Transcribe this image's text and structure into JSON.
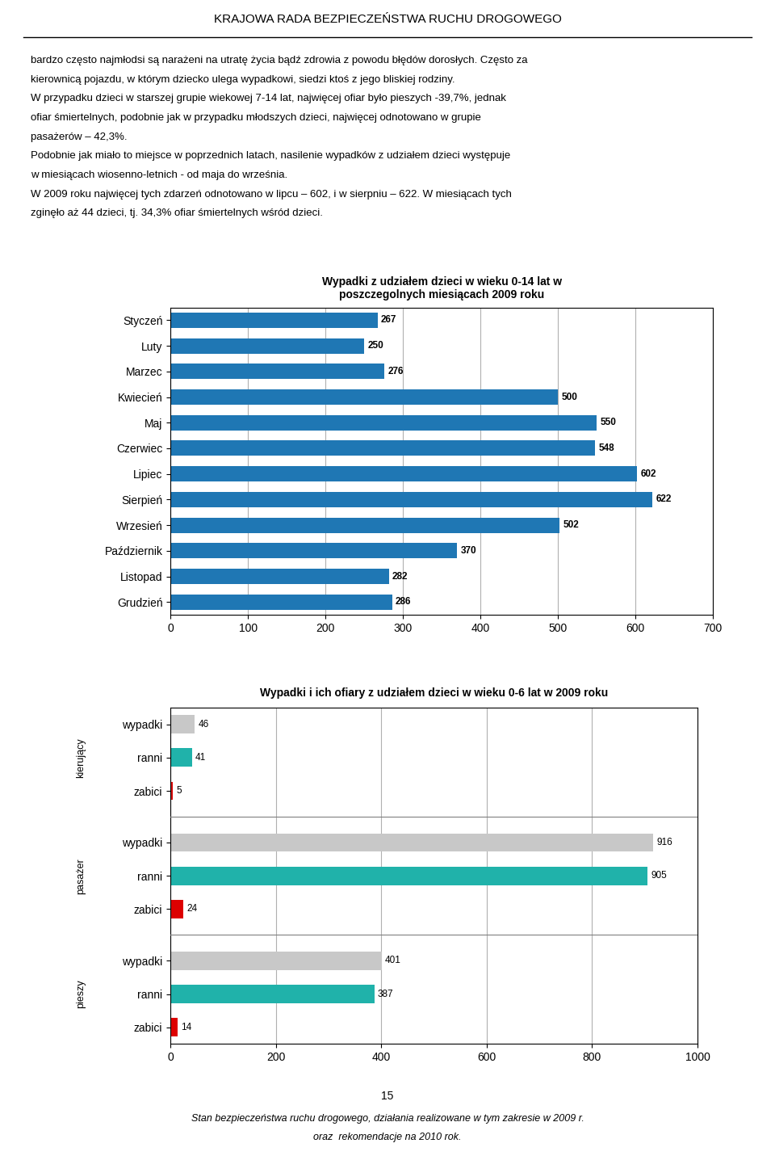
{
  "title": "KRAJOWA RADA BEZPIECZEŃSTWA RUCHU DROGOWEGO",
  "annotations": [
    "bardzo często najmłodsi są narażeni na utratę życia bądź zdrowia z powodu błędów dorosłych. Często za",
    "kierownicą pojazdu, w którym dziecko ulega wypadkowi, siedzi ktoś z jego bliskiej rodziny.",
    "W przypadku dzieci w starszej grupie wiekowej 7-14 lat, najwięcej ofiar było pieszych -39,7%, jednak",
    "ofiar śmiertelnych, podobnie jak w przypadku młodszych dzieci, najwięcej odnotowano w grupie",
    "pasażerów – 42,3%.",
    "Podobnie jak miało to miejsce w poprzednich latach, nasilenie wypadków z udziałem dzieci występuje",
    "w miesiącach wiosenno-letnich - od maja do września.",
    "W 2009 roku najwięcej tych zdarzeń odnotowano w lipcu – 602, i w sierpniu – 622. W miesiącach tych",
    "zginęło aż 44 dzieci, tj. 34,3% ofiar śmiertelnych wśród dzieci."
  ],
  "footer": [
    "15",
    "Stan bezpieczeństwa ruchu drogowego, działania realizowane w tym zakresie w 2009 r.",
    "oraz  rekomendacje na 2010 rok."
  ],
  "chart_data": [
    {
      "type": "bar",
      "orientation": "horizontal",
      "title": "Wypadki z udziałem dzieci w wieku 0-14 lat w\nposzczegolnych miesiącach 2009 roku",
      "categories": [
        "Grudzień",
        "Listopad",
        "Październik",
        "Wrzesień",
        "Sierpień",
        "Lipiec",
        "Czerwiec",
        "Maj",
        "Kwiecień",
        "Marzec",
        "Luty",
        "Styczeń"
      ],
      "values": [
        286,
        282,
        370,
        502,
        622,
        602,
        548,
        550,
        500,
        276,
        250,
        267
      ],
      "xlim": [
        0,
        700
      ],
      "xticks": [
        0,
        100,
        200,
        300,
        400,
        500,
        600,
        700
      ],
      "grid": true,
      "data_labels": true
    },
    {
      "type": "bar",
      "orientation": "horizontal",
      "title": "Wypadki i ich ofiary z udziałem dzieci w wieku 0-6 lat w 2009 roku",
      "categories": [
        "pieszy",
        "pasażer",
        "kierujący"
      ],
      "series": [
        {
          "name": "zabici",
          "color": "#dd0000",
          "values": [
            14,
            24,
            5
          ]
        },
        {
          "name": "ranni",
          "color": "#20b2aa",
          "values": [
            387,
            905,
            41
          ]
        },
        {
          "name": "wypadki",
          "color": "#c8c8c8",
          "values": [
            401,
            916,
            46
          ]
        }
      ],
      "xlim": [
        0,
        1000
      ],
      "xticks": [
        0,
        200,
        400,
        600,
        800,
        1000
      ],
      "grid": true,
      "data_labels": true
    }
  ]
}
